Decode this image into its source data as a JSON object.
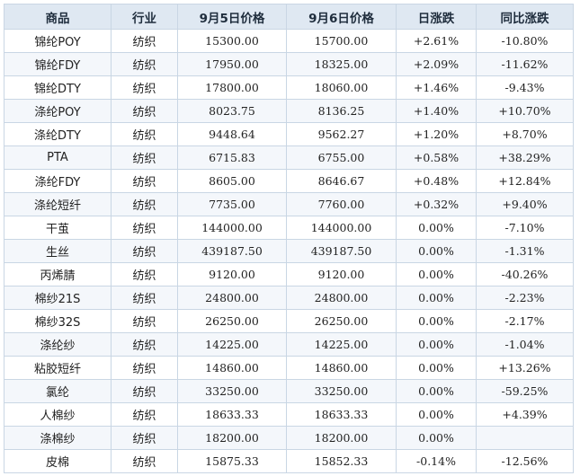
{
  "colors": {
    "highlight_name": "#e39a4f",
    "up": "#e0201b",
    "down": "#1f8a1f",
    "header_bg": "#dfe8f2",
    "border": "#c9d6e4"
  },
  "headers": [
    "商品",
    "行业",
    "9月5日价格",
    "9月6日价格",
    "日涨跌",
    "同比涨跌"
  ],
  "rows": [
    {
      "name": "锦纶POY",
      "name_color": "highlight",
      "industry": "纺织",
      "price_0905": "15300.00",
      "price_0906": "15700.00",
      "daily_change": "+2.61%",
      "daily_dir": "up",
      "yoy_change": "-10.80%",
      "yoy_dir": "down"
    },
    {
      "name": "锦纶FDY",
      "name_color": "normal",
      "industry": "纺织",
      "price_0905": "17950.00",
      "price_0906": "18325.00",
      "daily_change": "+2.09%",
      "daily_dir": "up",
      "yoy_change": "-11.62%",
      "yoy_dir": "down"
    },
    {
      "name": "锦纶DTY",
      "name_color": "normal",
      "industry": "纺织",
      "price_0905": "17800.00",
      "price_0906": "18060.00",
      "daily_change": "+1.46%",
      "daily_dir": "up",
      "yoy_change": "-9.43%",
      "yoy_dir": "down"
    },
    {
      "name": "涤纶POY",
      "name_color": "highlight",
      "industry": "纺织",
      "price_0905": "8023.75",
      "price_0906": "8136.25",
      "daily_change": "+1.40%",
      "daily_dir": "up",
      "yoy_change": "+10.70%",
      "yoy_dir": "up"
    },
    {
      "name": "涤纶DTY",
      "name_color": "highlight",
      "industry": "纺织",
      "price_0905": "9448.64",
      "price_0906": "9562.27",
      "daily_change": "+1.20%",
      "daily_dir": "up",
      "yoy_change": "+8.70%",
      "yoy_dir": "up"
    },
    {
      "name": "PTA",
      "name_color": "highlight",
      "industry": "纺织",
      "price_0905": "6715.83",
      "price_0906": "6755.00",
      "daily_change": "+0.58%",
      "daily_dir": "up",
      "yoy_change": "+38.29%",
      "yoy_dir": "up"
    },
    {
      "name": "涤纶FDY",
      "name_color": "highlight",
      "industry": "纺织",
      "price_0905": "8605.00",
      "price_0906": "8646.67",
      "daily_change": "+0.48%",
      "daily_dir": "up",
      "yoy_change": "+12.84%",
      "yoy_dir": "up"
    },
    {
      "name": "涤纶短纤",
      "name_color": "highlight",
      "industry": "纺织",
      "price_0905": "7735.00",
      "price_0906": "7760.00",
      "daily_change": "+0.32%",
      "daily_dir": "up",
      "yoy_change": "+9.40%",
      "yoy_dir": "up"
    },
    {
      "name": "干茧",
      "name_color": "highlight",
      "industry": "纺织",
      "price_0905": "144000.00",
      "price_0906": "144000.00",
      "daily_change": "0.00%",
      "daily_dir": "flat",
      "yoy_change": "-7.10%",
      "yoy_dir": "down"
    },
    {
      "name": "生丝",
      "name_color": "highlight",
      "industry": "纺织",
      "price_0905": "439187.50",
      "price_0906": "439187.50",
      "daily_change": "0.00%",
      "daily_dir": "flat",
      "yoy_change": "-1.31%",
      "yoy_dir": "down"
    },
    {
      "name": "丙烯腈",
      "name_color": "highlight",
      "industry": "纺织",
      "price_0905": "9120.00",
      "price_0906": "9120.00",
      "daily_change": "0.00%",
      "daily_dir": "flat",
      "yoy_change": "-40.26%",
      "yoy_dir": "down"
    },
    {
      "name": "棉纱21S",
      "name_color": "highlight",
      "industry": "纺织",
      "price_0905": "24800.00",
      "price_0906": "24800.00",
      "daily_change": "0.00%",
      "daily_dir": "flat",
      "yoy_change": "-2.23%",
      "yoy_dir": "down"
    },
    {
      "name": "棉纱32S",
      "name_color": "normal",
      "industry": "纺织",
      "price_0905": "26250.00",
      "price_0906": "26250.00",
      "daily_change": "0.00%",
      "daily_dir": "flat",
      "yoy_change": "-2.17%",
      "yoy_dir": "down"
    },
    {
      "name": "涤纶纱",
      "name_color": "highlight",
      "industry": "纺织",
      "price_0905": "14225.00",
      "price_0906": "14225.00",
      "daily_change": "0.00%",
      "daily_dir": "flat",
      "yoy_change": "-1.04%",
      "yoy_dir": "down"
    },
    {
      "name": "粘胶短纤",
      "name_color": "highlight",
      "industry": "纺织",
      "price_0905": "14860.00",
      "price_0906": "14860.00",
      "daily_change": "0.00%",
      "daily_dir": "flat",
      "yoy_change": "+13.26%",
      "yoy_dir": "up"
    },
    {
      "name": "氯纶",
      "name_color": "highlight",
      "industry": "纺织",
      "price_0905": "33250.00",
      "price_0906": "33250.00",
      "daily_change": "0.00%",
      "daily_dir": "flat",
      "yoy_change": "-59.25%",
      "yoy_dir": "down"
    },
    {
      "name": "人棉纱",
      "name_color": "highlight",
      "industry": "纺织",
      "price_0905": "18633.33",
      "price_0906": "18633.33",
      "daily_change": "0.00%",
      "daily_dir": "flat",
      "yoy_change": "+4.39%",
      "yoy_dir": "up"
    },
    {
      "name": "涤棉纱",
      "name_color": "normal",
      "industry": "纺织",
      "price_0905": "18200.00",
      "price_0906": "18200.00",
      "daily_change": "0.00%",
      "daily_dir": "flat",
      "yoy_change": "",
      "yoy_dir": "flat"
    },
    {
      "name": "皮棉",
      "name_color": "normal",
      "industry": "纺织",
      "price_0905": "15875.33",
      "price_0906": "15852.33",
      "daily_change": "-0.14%",
      "daily_dir": "down",
      "yoy_change": "-12.56%",
      "yoy_dir": "down"
    }
  ]
}
